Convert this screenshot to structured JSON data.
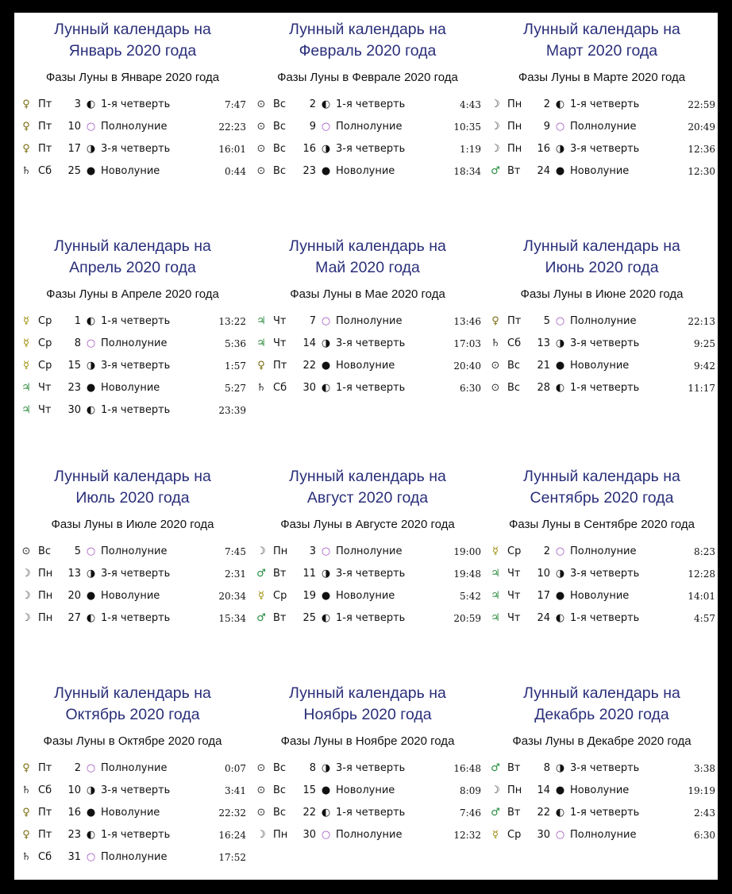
{
  "colors": {
    "title": "#2a2f7a",
    "venus": "#7a6a10",
    "mercury": "#9a8a00",
    "jupiter": "#2a8a3a",
    "mars": "#1f8a3a",
    "sun": "#333",
    "moon": "#333",
    "saturn": "#333",
    "full_moon": "#a050c0"
  },
  "months": [
    {
      "title1": "Лунный календарь на",
      "title2": "Январь 2020 года",
      "subtitle": "Фазы Луны в Январе 2020 года",
      "rows": [
        {
          "planet": "venus",
          "day_week": "Пт",
          "day": "3",
          "phase": "first-quarter",
          "phase_name": "1-я четверть",
          "time": "7:47"
        },
        {
          "planet": "venus",
          "day_week": "Пт",
          "day": "10",
          "phase": "full-moon",
          "phase_name": "Полнолуние",
          "time": "22:23"
        },
        {
          "planet": "venus",
          "day_week": "Пт",
          "day": "17",
          "phase": "last-quarter",
          "phase_name": "3-я четверть",
          "time": "16:01"
        },
        {
          "planet": "saturn",
          "day_week": "Сб",
          "day": "25",
          "phase": "new-moon",
          "phase_name": "Новолуние",
          "time": "0:44"
        }
      ]
    },
    {
      "title1": "Лунный календарь на",
      "title2": "Февраль 2020 года",
      "subtitle": "Фазы Луны в Феврале 2020 года",
      "rows": [
        {
          "planet": "sun",
          "day_week": "Вс",
          "day": "2",
          "phase": "first-quarter",
          "phase_name": "1-я четверть",
          "time": "4:43"
        },
        {
          "planet": "sun",
          "day_week": "Вс",
          "day": "9",
          "phase": "full-moon",
          "phase_name": "Полнолуние",
          "time": "10:35"
        },
        {
          "planet": "sun",
          "day_week": "Вс",
          "day": "16",
          "phase": "last-quarter",
          "phase_name": "3-я четверть",
          "time": "1:19"
        },
        {
          "planet": "sun",
          "day_week": "Вс",
          "day": "23",
          "phase": "new-moon",
          "phase_name": "Новолуние",
          "time": "18:34"
        }
      ]
    },
    {
      "title1": "Лунный календарь на",
      "title2": "Март 2020 года",
      "subtitle": "Фазы Луны в Марте 2020 года",
      "rows": [
        {
          "planet": "moon",
          "day_week": "Пн",
          "day": "2",
          "phase": "first-quarter",
          "phase_name": "1-я четверть",
          "time": "22:59"
        },
        {
          "planet": "moon",
          "day_week": "Пн",
          "day": "9",
          "phase": "full-moon",
          "phase_name": "Полнолуние",
          "time": "20:49"
        },
        {
          "planet": "moon",
          "day_week": "Пн",
          "day": "16",
          "phase": "last-quarter",
          "phase_name": "3-я четверть",
          "time": "12:36"
        },
        {
          "planet": "mars",
          "day_week": "Вт",
          "day": "24",
          "phase": "new-moon",
          "phase_name": "Новолуние",
          "time": "12:30"
        }
      ]
    },
    {
      "title1": "Лунный календарь на",
      "title2": "Апрель 2020 года",
      "subtitle": "Фазы Луны в Апреле 2020 года",
      "rows": [
        {
          "planet": "mercury",
          "day_week": "Ср",
          "day": "1",
          "phase": "first-quarter",
          "phase_name": "1-я четверть",
          "time": "13:22"
        },
        {
          "planet": "mercury",
          "day_week": "Ср",
          "day": "8",
          "phase": "full-moon",
          "phase_name": "Полнолуние",
          "time": "5:36"
        },
        {
          "planet": "mercury",
          "day_week": "Ср",
          "day": "15",
          "phase": "last-quarter",
          "phase_name": "3-я четверть",
          "time": "1:57"
        },
        {
          "planet": "jupiter",
          "day_week": "Чт",
          "day": "23",
          "phase": "new-moon",
          "phase_name": "Новолуние",
          "time": "5:27"
        },
        {
          "planet": "jupiter",
          "day_week": "Чт",
          "day": "30",
          "phase": "first-quarter",
          "phase_name": "1-я четверть",
          "time": "23:39"
        }
      ]
    },
    {
      "title1": "Лунный календарь на",
      "title2": "Май 2020 года",
      "subtitle": "Фазы Луны в Мае 2020 года",
      "rows": [
        {
          "planet": "jupiter",
          "day_week": "Чт",
          "day": "7",
          "phase": "full-moon",
          "phase_name": "Полнолуние",
          "time": "13:46"
        },
        {
          "planet": "jupiter",
          "day_week": "Чт",
          "day": "14",
          "phase": "last-quarter",
          "phase_name": "3-я четверть",
          "time": "17:03"
        },
        {
          "planet": "venus",
          "day_week": "Пт",
          "day": "22",
          "phase": "new-moon",
          "phase_name": "Новолуние",
          "time": "20:40"
        },
        {
          "planet": "saturn",
          "day_week": "Сб",
          "day": "30",
          "phase": "first-quarter",
          "phase_name": "1-я четверть",
          "time": "6:30"
        }
      ]
    },
    {
      "title1": "Лунный календарь на",
      "title2": "Июнь 2020 года",
      "subtitle": "Фазы Луны в Июне 2020 года",
      "rows": [
        {
          "planet": "venus",
          "day_week": "Пт",
          "day": "5",
          "phase": "full-moon",
          "phase_name": "Полнолуние",
          "time": "22:13"
        },
        {
          "planet": "saturn",
          "day_week": "Сб",
          "day": "13",
          "phase": "last-quarter",
          "phase_name": "3-я четверть",
          "time": "9:25"
        },
        {
          "planet": "sun",
          "day_week": "Вс",
          "day": "21",
          "phase": "new-moon",
          "phase_name": "Новолуние",
          "time": "9:42"
        },
        {
          "planet": "sun",
          "day_week": "Вс",
          "day": "28",
          "phase": "first-quarter",
          "phase_name": "1-я четверть",
          "time": "11:17"
        }
      ]
    },
    {
      "title1": "Лунный календарь на",
      "title2": "Июль 2020 года",
      "subtitle": "Фазы Луны в Июле 2020 года",
      "rows": [
        {
          "planet": "sun",
          "day_week": "Вс",
          "day": "5",
          "phase": "full-moon",
          "phase_name": "Полнолуние",
          "time": "7:45"
        },
        {
          "planet": "moon",
          "day_week": "Пн",
          "day": "13",
          "phase": "last-quarter",
          "phase_name": "3-я четверть",
          "time": "2:31"
        },
        {
          "planet": "moon",
          "day_week": "Пн",
          "day": "20",
          "phase": "new-moon",
          "phase_name": "Новолуние",
          "time": "20:34"
        },
        {
          "planet": "moon",
          "day_week": "Пн",
          "day": "27",
          "phase": "first-quarter",
          "phase_name": "1-я четверть",
          "time": "15:34"
        }
      ]
    },
    {
      "title1": "Лунный календарь на",
      "title2": "Август 2020 года",
      "subtitle": "Фазы Луны в Августе 2020 года",
      "rows": [
        {
          "planet": "moon",
          "day_week": "Пн",
          "day": "3",
          "phase": "full-moon",
          "phase_name": "Полнолуние",
          "time": "19:00"
        },
        {
          "planet": "mars",
          "day_week": "Вт",
          "day": "11",
          "phase": "last-quarter",
          "phase_name": "3-я четверть",
          "time": "19:48"
        },
        {
          "planet": "mercury",
          "day_week": "Ср",
          "day": "19",
          "phase": "new-moon",
          "phase_name": "Новолуние",
          "time": "5:42"
        },
        {
          "planet": "mars",
          "day_week": "Вт",
          "day": "25",
          "phase": "first-quarter",
          "phase_name": "1-я четверть",
          "time": "20:59"
        }
      ]
    },
    {
      "title1": "Лунный календарь на",
      "title2": "Сентябрь 2020 года",
      "subtitle": "Фазы Луны в Сентябре 2020 года",
      "rows": [
        {
          "planet": "mercury",
          "day_week": "Ср",
          "day": "2",
          "phase": "full-moon",
          "phase_name": "Полнолуние",
          "time": "8:23"
        },
        {
          "planet": "jupiter",
          "day_week": "Чт",
          "day": "10",
          "phase": "last-quarter",
          "phase_name": "3-я четверть",
          "time": "12:28"
        },
        {
          "planet": "jupiter",
          "day_week": "Чт",
          "day": "17",
          "phase": "new-moon",
          "phase_name": "Новолуние",
          "time": "14:01"
        },
        {
          "planet": "jupiter",
          "day_week": "Чт",
          "day": "24",
          "phase": "first-quarter",
          "phase_name": "1-я четверть",
          "time": "4:57"
        }
      ]
    },
    {
      "title1": "Лунный календарь на",
      "title2": "Октябрь 2020 года",
      "subtitle": "Фазы Луны в Октябре 2020 года",
      "rows": [
        {
          "planet": "venus",
          "day_week": "Пт",
          "day": "2",
          "phase": "full-moon",
          "phase_name": "Полнолуние",
          "time": "0:07"
        },
        {
          "planet": "saturn",
          "day_week": "Сб",
          "day": "10",
          "phase": "last-quarter",
          "phase_name": "3-я четверть",
          "time": "3:41"
        },
        {
          "planet": "venus",
          "day_week": "Пт",
          "day": "16",
          "phase": "new-moon",
          "phase_name": "Новолуние",
          "time": "22:32"
        },
        {
          "planet": "venus",
          "day_week": "Пт",
          "day": "23",
          "phase": "first-quarter",
          "phase_name": "1-я четверть",
          "time": "16:24"
        },
        {
          "planet": "saturn",
          "day_week": "Сб",
          "day": "31",
          "phase": "full-moon",
          "phase_name": "Полнолуние",
          "time": "17:52"
        }
      ]
    },
    {
      "title1": "Лунный календарь на",
      "title2": "Ноябрь 2020 года",
      "subtitle": "Фазы Луны в Ноябре 2020 года",
      "rows": [
        {
          "planet": "sun",
          "day_week": "Вс",
          "day": "8",
          "phase": "last-quarter",
          "phase_name": "3-я четверть",
          "time": "16:48"
        },
        {
          "planet": "sun",
          "day_week": "Вс",
          "day": "15",
          "phase": "new-moon",
          "phase_name": "Новолуние",
          "time": "8:09"
        },
        {
          "planet": "sun",
          "day_week": "Вс",
          "day": "22",
          "phase": "first-quarter",
          "phase_name": "1-я четверть",
          "time": "7:46"
        },
        {
          "planet": "moon",
          "day_week": "Пн",
          "day": "30",
          "phase": "full-moon",
          "phase_name": "Полнолуние",
          "time": "12:32"
        }
      ]
    },
    {
      "title1": "Лунный календарь на",
      "title2": "Декабрь 2020 года",
      "subtitle": "Фазы Луны в Декабре 2020 года",
      "rows": [
        {
          "planet": "mars",
          "day_week": "Вт",
          "day": "8",
          "phase": "last-quarter",
          "phase_name": "3-я четверть",
          "time": "3:38"
        },
        {
          "planet": "moon",
          "day_week": "Пн",
          "day": "14",
          "phase": "new-moon",
          "phase_name": "Новолуние",
          "time": "19:19"
        },
        {
          "planet": "mars",
          "day_week": "Вт",
          "day": "22",
          "phase": "first-quarter",
          "phase_name": "1-я четверть",
          "time": "2:43"
        },
        {
          "planet": "mercury",
          "day_week": "Ср",
          "day": "30",
          "phase": "full-moon",
          "phase_name": "Полнолуние",
          "time": "6:30"
        }
      ]
    }
  ]
}
